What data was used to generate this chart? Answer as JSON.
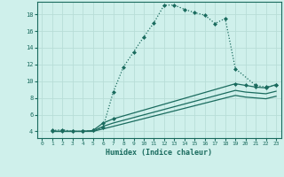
{
  "xlabel": "Humidex (Indice chaleur)",
  "bg_color": "#cff0eb",
  "line_color": "#1a6b5e",
  "grid_color": "#b8ddd7",
  "xlim": [
    -0.5,
    23.5
  ],
  "ylim": [
    3.2,
    19.5
  ],
  "xticks": [
    0,
    1,
    2,
    3,
    4,
    5,
    6,
    7,
    8,
    9,
    10,
    11,
    12,
    13,
    14,
    15,
    16,
    17,
    18,
    19,
    20,
    21,
    22,
    23
  ],
  "yticks": [
    4,
    6,
    8,
    10,
    12,
    14,
    16,
    18
  ],
  "series": [
    {
      "x": [
        1,
        2,
        3,
        4,
        5,
        6,
        7,
        8,
        9,
        10,
        11,
        12,
        13,
        14,
        15,
        16,
        17,
        18,
        19,
        21,
        22,
        23
      ],
      "y": [
        4.1,
        4.2,
        4.0,
        4.0,
        4.1,
        4.5,
        8.7,
        11.7,
        13.5,
        15.3,
        17.0,
        19.1,
        19.1,
        18.6,
        18.2,
        17.9,
        16.9,
        17.5,
        11.5,
        9.5,
        9.3,
        9.5
      ],
      "marker": "D",
      "markersize": 2.0,
      "linestyle": ":"
    },
    {
      "x": [
        1,
        2,
        3,
        4,
        5,
        6,
        7,
        19,
        20,
        21,
        22,
        23
      ],
      "y": [
        4.0,
        4.0,
        4.0,
        4.0,
        4.1,
        5.0,
        5.5,
        9.7,
        9.5,
        9.3,
        9.2,
        9.6
      ],
      "marker": "D",
      "markersize": 2.0,
      "linestyle": "-"
    },
    {
      "x": [
        1,
        2,
        3,
        4,
        5,
        6,
        7,
        19,
        20,
        21,
        22,
        23
      ],
      "y": [
        4.0,
        4.0,
        4.0,
        4.0,
        4.0,
        4.6,
        5.0,
        8.9,
        8.7,
        8.6,
        8.5,
        8.8
      ],
      "marker": null,
      "markersize": 0,
      "linestyle": "-"
    },
    {
      "x": [
        1,
        2,
        3,
        4,
        5,
        6,
        7,
        19,
        20,
        21,
        22,
        23
      ],
      "y": [
        4.0,
        4.0,
        4.0,
        4.0,
        4.0,
        4.3,
        4.6,
        8.3,
        8.1,
        8.0,
        7.9,
        8.2
      ],
      "marker": null,
      "markersize": 0,
      "linestyle": "-"
    }
  ]
}
